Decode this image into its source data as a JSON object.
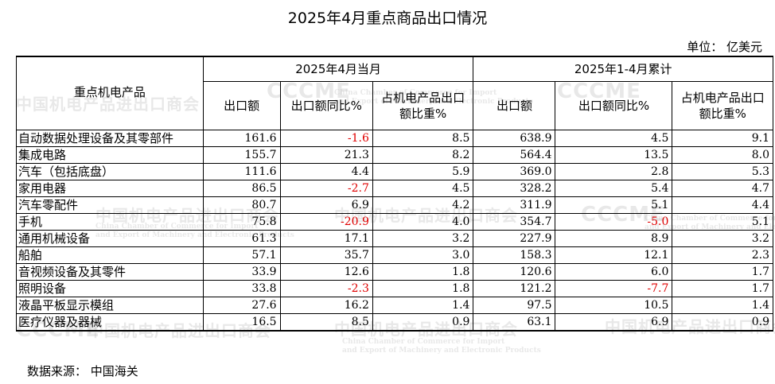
{
  "title": "2025年4月重点商品出口情况",
  "unit": "单位：  亿美元",
  "header": {
    "product_col": "重点机电产品",
    "group_month": "2025年4月当月",
    "group_cum": "2025年1-4月累计",
    "col_export": "出口额",
    "col_yoy": "出口额同比%",
    "col_share": "占机电产品出口额比重%"
  },
  "rows": [
    {
      "name": "自动数据处理设备及其零部件",
      "m_exp": "161.6",
      "m_yoy": "-1.6",
      "m_share": "8.5",
      "c_exp": "638.9",
      "c_yoy": "4.5",
      "c_share": "9.1"
    },
    {
      "name": "集成电路",
      "m_exp": "155.7",
      "m_yoy": "21.3",
      "m_share": "8.2",
      "c_exp": "564.4",
      "c_yoy": "13.5",
      "c_share": "8.0"
    },
    {
      "name": "汽车（包括底盘）",
      "m_exp": "111.6",
      "m_yoy": "4.4",
      "m_share": "5.9",
      "c_exp": "369.0",
      "c_yoy": "2.8",
      "c_share": "5.3"
    },
    {
      "name": "家用电器",
      "m_exp": "86.5",
      "m_yoy": "-2.7",
      "m_share": "4.5",
      "c_exp": "328.2",
      "c_yoy": "5.4",
      "c_share": "4.7"
    },
    {
      "name": "汽车零配件",
      "m_exp": "80.7",
      "m_yoy": "6.9",
      "m_share": "4.2",
      "c_exp": "311.9",
      "c_yoy": "5.1",
      "c_share": "4.4"
    },
    {
      "name": "手机",
      "m_exp": "75.8",
      "m_yoy": "-20.9",
      "m_share": "4.0",
      "c_exp": "354.7",
      "c_yoy": "-5.0",
      "c_share": "5.1"
    },
    {
      "name": "通用机械设备",
      "m_exp": "61.3",
      "m_yoy": "17.1",
      "m_share": "3.2",
      "c_exp": "227.9",
      "c_yoy": "8.9",
      "c_share": "3.2"
    },
    {
      "name": "船舶",
      "m_exp": "57.1",
      "m_yoy": "35.7",
      "m_share": "3.0",
      "c_exp": "158.3",
      "c_yoy": "12.1",
      "c_share": "2.3"
    },
    {
      "name": "音视频设备及其零件",
      "m_exp": "33.9",
      "m_yoy": "12.6",
      "m_share": "1.8",
      "c_exp": "120.6",
      "c_yoy": "6.0",
      "c_share": "1.7"
    },
    {
      "name": "照明设备",
      "m_exp": "33.8",
      "m_yoy": "-2.3",
      "m_share": "1.8",
      "c_exp": "121.2",
      "c_yoy": "-7.7",
      "c_share": "1.7"
    },
    {
      "name": "液晶平板显示模组",
      "m_exp": "27.6",
      "m_yoy": "16.2",
      "m_share": "1.4",
      "c_exp": "97.5",
      "c_yoy": "10.5",
      "c_share": "1.4"
    },
    {
      "name": "医疗仪器及器械",
      "m_exp": "16.5",
      "m_yoy": "8.5",
      "m_share": "0.9",
      "c_exp": "63.1",
      "c_yoy": "6.9",
      "c_share": "0.9"
    }
  ],
  "source": "数据来源：  中国海关",
  "watermark": {
    "cn": "中国机电产品进出口商会",
    "logo": "CCCME",
    "en1": "China Chamber of Commerce for Import",
    "en2": "and Export of Machinery and Electronic Products"
  },
  "colors": {
    "negative": "#e00000"
  }
}
